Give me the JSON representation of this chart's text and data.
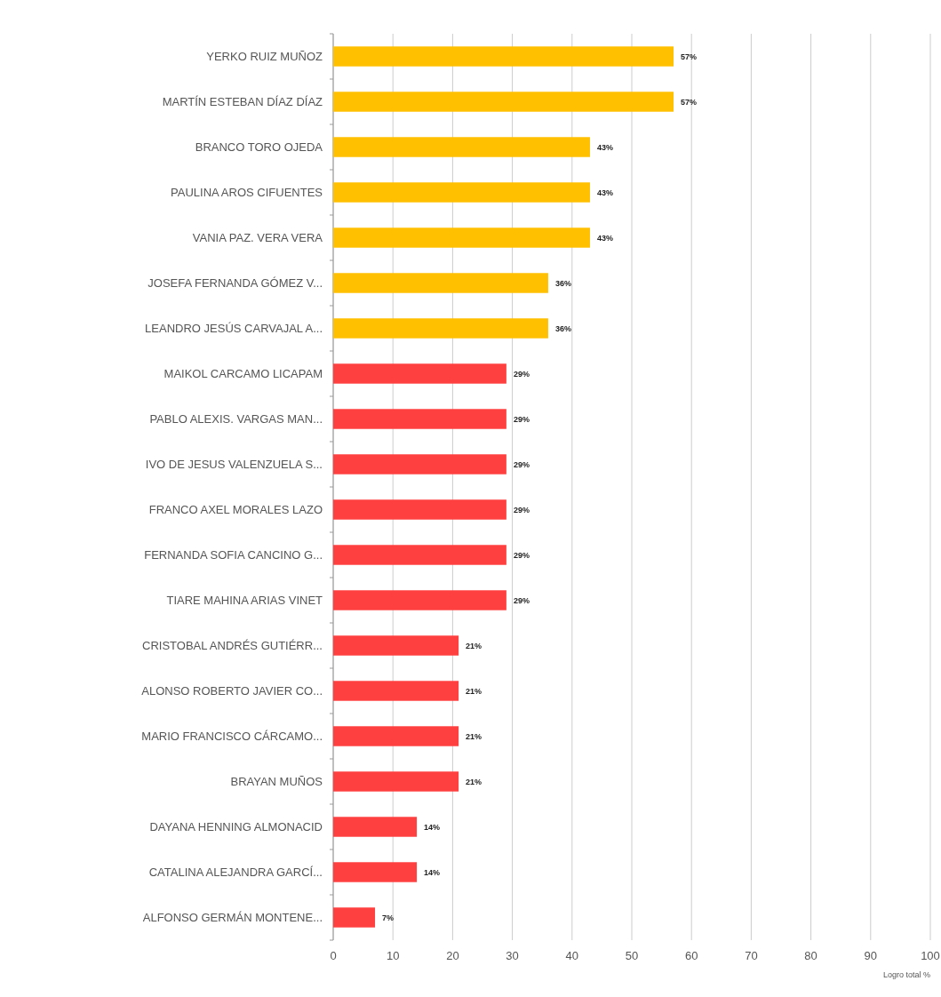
{
  "chart_data": {
    "type": "bar",
    "orientation": "horizontal",
    "xlabel": "Logro total %",
    "categories": [
      "YERKO RUIZ MUÑOZ",
      "MARTÍN ESTEBAN DÍAZ DÍAZ",
      "BRANCO TORO OJEDA",
      "PAULINA AROS CIFUENTES",
      "VANIA PAZ. VERA VERA",
      "JOSEFA FERNANDA GÓMEZ V...",
      "LEANDRO JESÚS CARVAJAL A...",
      "MAIKOL CARCAMO LICAPAM",
      "PABLO ALEXIS. VARGAS MAN...",
      "IVO DE JESUS VALENZUELA S...",
      "FRANCO AXEL MORALES LAZO",
      "FERNANDA SOFIA CANCINO G...",
      "TIARE MAHINA ARIAS VINET",
      "CRISTOBAL ANDRÉS GUTIÉRR...",
      "ALONSO ROBERTO JAVIER CO...",
      "MARIO FRANCISCO CÁRCAMO...",
      "BRAYAN MUÑOS",
      "DAYANA HENNING ALMONACID",
      "CATALINA ALEJANDRA GARCÍ...",
      "ALFONSO GERMÁN MONTENE..."
    ],
    "values": [
      57,
      57,
      43,
      43,
      43,
      36,
      36,
      29,
      29,
      29,
      29,
      29,
      29,
      21,
      21,
      21,
      21,
      14,
      14,
      7
    ],
    "value_labels": [
      "57%",
      "57%",
      "43%",
      "43%",
      "43%",
      "36%",
      "36%",
      "29%",
      "29%",
      "29%",
      "29%",
      "29%",
      "29%",
      "21%",
      "21%",
      "21%",
      "21%",
      "14%",
      "14%",
      "7%"
    ],
    "colors": [
      "#ffc000",
      "#ffc000",
      "#ffc000",
      "#ffc000",
      "#ffc000",
      "#ffc000",
      "#ffc000",
      "#ff4040",
      "#ff4040",
      "#ff4040",
      "#ff4040",
      "#ff4040",
      "#ff4040",
      "#ff4040",
      "#ff4040",
      "#ff4040",
      "#ff4040",
      "#ff4040",
      "#ff4040",
      "#ff4040"
    ],
    "xlim": [
      0,
      100
    ],
    "xticks": [
      0,
      10,
      20,
      30,
      40,
      50,
      60,
      70,
      80,
      90,
      100
    ],
    "grid": "x"
  }
}
